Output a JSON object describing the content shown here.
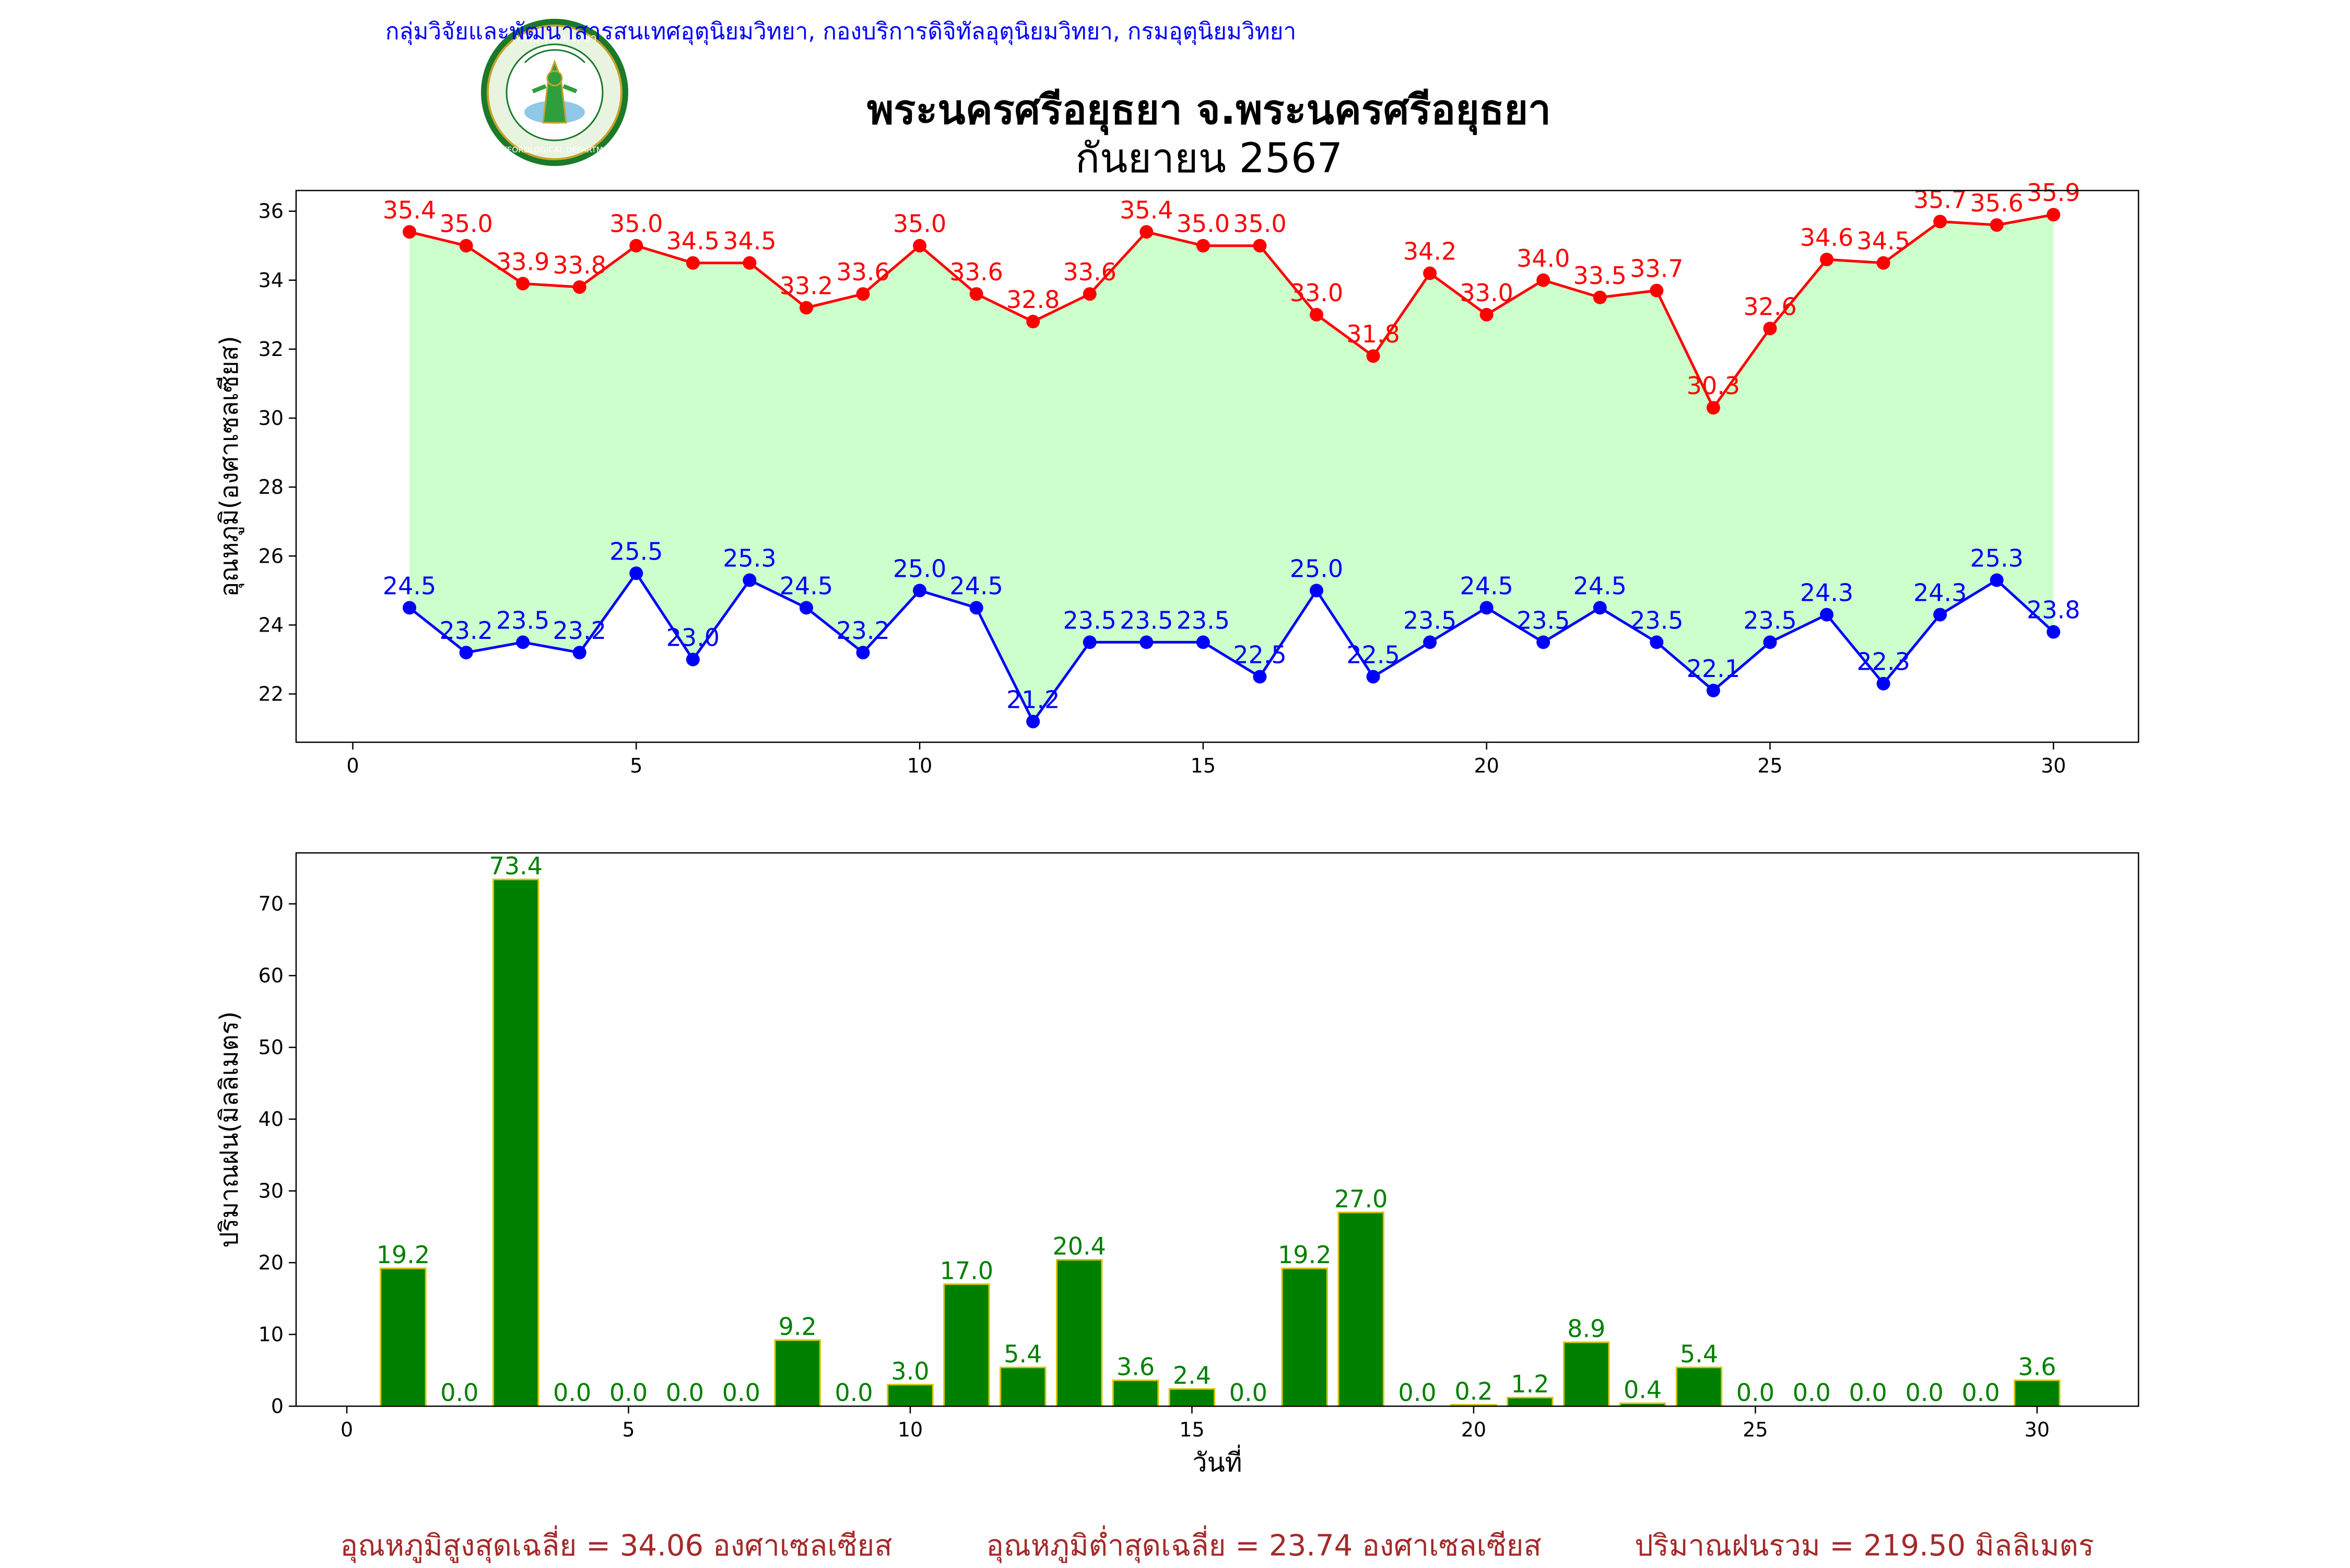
{
  "header": {
    "agency": "กลุ่มวิจัยและพัฒนาสารสนเทศอุตุนิยมวิทยา, กองบริการดิจิทัลอุตุนิยมวิทยา, กรมอุตุนิยมวิทยา",
    "title_line1": "พระนครศรีอยุธยา จ.พระนครศรีอยุธยา",
    "title_line2": "กันยายน 2567",
    "logo": {
      "top_text": "กรมอุตุนิยมวิทยา",
      "bottom_text": "METEOROLOGICAL DEPARTMENT",
      "colors": {
        "ring": "#1a7a2a",
        "inner": "#ffffff",
        "figure": "#2e9e3e",
        "gold": "#c9a227"
      }
    }
  },
  "chart_data": [
    {
      "type": "line",
      "ylabel": "อุณหภูมิ(องศาเซลเซียส)",
      "xlabel": "",
      "xlim": [
        -1,
        31.5
      ],
      "ylim": [
        20.6,
        36.6
      ],
      "xticks": [
        0,
        5,
        10,
        15,
        20,
        25,
        30
      ],
      "yticks": [
        22,
        24,
        26,
        28,
        30,
        32,
        34,
        36
      ],
      "fill_between": {
        "color": "#ccffcc",
        "between": [
          "max",
          "min"
        ]
      },
      "x": [
        1,
        2,
        3,
        4,
        5,
        6,
        7,
        8,
        9,
        10,
        11,
        12,
        13,
        14,
        15,
        16,
        17,
        18,
        19,
        20,
        21,
        22,
        23,
        24,
        25,
        26,
        27,
        28,
        29,
        30
      ],
      "series": [
        {
          "key": "max",
          "color": "#ff0000",
          "values": [
            35.4,
            35.0,
            33.9,
            33.8,
            35.0,
            34.5,
            34.5,
            33.2,
            33.6,
            35.0,
            33.6,
            32.8,
            33.6,
            35.4,
            35.0,
            35.0,
            33.0,
            31.8,
            34.2,
            33.0,
            34.0,
            33.5,
            33.7,
            30.3,
            32.6,
            34.6,
            34.5,
            35.7,
            35.6,
            35.9
          ]
        },
        {
          "key": "min",
          "color": "#0000ff",
          "values": [
            24.5,
            23.2,
            23.5,
            23.2,
            25.5,
            23.0,
            25.3,
            24.5,
            23.2,
            25.0,
            24.5,
            21.2,
            23.5,
            23.5,
            23.5,
            22.5,
            25.0,
            22.5,
            23.5,
            24.5,
            23.5,
            24.5,
            23.5,
            22.1,
            23.5,
            24.3,
            22.3,
            24.3,
            25.3,
            23.8
          ]
        }
      ]
    },
    {
      "type": "bar",
      "ylabel": "ปริมาณฝน(มิลลิเมตร)",
      "xlabel": "วันที่",
      "xlim": [
        -0.9,
        31.8
      ],
      "ylim": [
        0,
        77.1
      ],
      "xticks": [
        0,
        5,
        10,
        15,
        20,
        25,
        30
      ],
      "yticks": [
        0,
        10,
        20,
        30,
        40,
        50,
        60,
        70
      ],
      "bar_color": "#008000",
      "edge_color": "#d4c400",
      "label_color": "#008000",
      "x": [
        1,
        2,
        3,
        4,
        5,
        6,
        7,
        8,
        9,
        10,
        11,
        12,
        13,
        14,
        15,
        16,
        17,
        18,
        19,
        20,
        21,
        22,
        23,
        24,
        25,
        26,
        27,
        28,
        29,
        30
      ],
      "values": [
        19.2,
        0.0,
        73.4,
        0.0,
        0.0,
        0.0,
        0.0,
        9.2,
        0.0,
        3.0,
        17.0,
        5.4,
        20.4,
        3.6,
        2.4,
        0.0,
        19.2,
        27.0,
        0.0,
        0.2,
        1.2,
        8.9,
        0.4,
        5.4,
        0.0,
        0.0,
        0.0,
        0.0,
        0.0,
        3.6
      ]
    }
  ],
  "footer": {
    "color": "#a52a2a",
    "avg_max": "อุณหภูมิสูงสุดเฉลี่ย = 34.06 องศาเซลเซียส",
    "avg_min": "อุณหภูมิต่ำสุดเฉลี่ย = 23.74 องศาเซลเซียส",
    "total_rain": "ปริมาณฝนรวม = 219.50 มิลลิเมตร"
  }
}
